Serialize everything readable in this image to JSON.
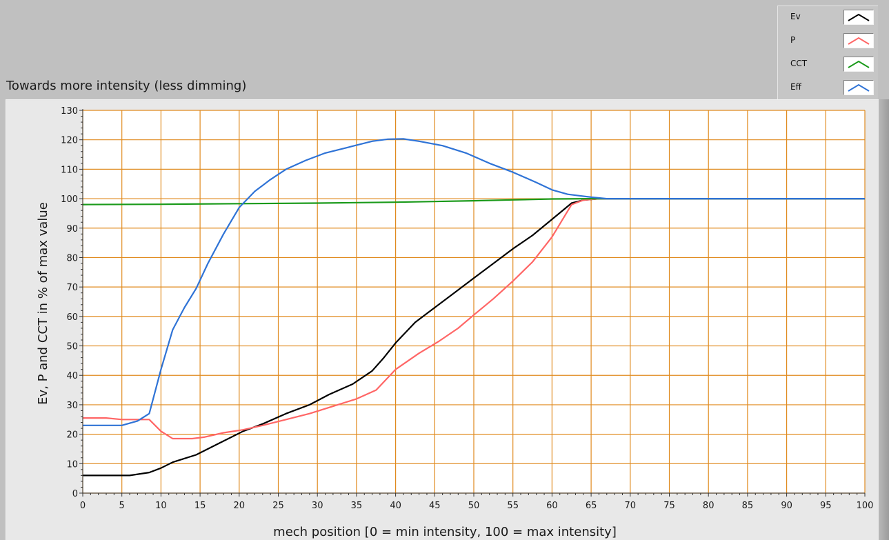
{
  "title": "Towards more intensity (less dimming)",
  "legend": [
    {
      "name": "Ev",
      "color": "#000000"
    },
    {
      "name": "P",
      "color": "#ff6666"
    },
    {
      "name": "CCT",
      "color": "#1a9a1a"
    },
    {
      "name": "Eff",
      "color": "#2f73d6"
    }
  ],
  "colors": {
    "grid": "#e08a1e",
    "plot_bg": "#ffffff"
  },
  "chart_data": {
    "type": "line",
    "xlabel": "mech position [0 = min intensity, 100 = max intensity]",
    "ylabel": "Ev, P and CCT in % of max value",
    "xlim": [
      0,
      100
    ],
    "ylim": [
      0,
      130
    ],
    "xticks": [
      0,
      5,
      10,
      15,
      20,
      25,
      30,
      35,
      40,
      45,
      50,
      55,
      60,
      65,
      70,
      75,
      80,
      85,
      90,
      95,
      100
    ],
    "yticks": [
      0,
      10,
      20,
      30,
      40,
      50,
      60,
      70,
      80,
      90,
      100,
      110,
      120,
      130
    ],
    "grid": true,
    "legend_position": "top-right",
    "series": [
      {
        "name": "Ev",
        "color": "#000000",
        "x": [
          0,
          6,
          8.5,
          10,
          11.5,
          14.5,
          17.5,
          20.5,
          23,
          26,
          29,
          31.5,
          34.5,
          37,
          38.5,
          40,
          42.5,
          45,
          47.5,
          50,
          52.5,
          55,
          57.5,
          60,
          62.5,
          64,
          66,
          70,
          75,
          80,
          85,
          90,
          95,
          100
        ],
        "y": [
          6,
          6,
          7,
          8.5,
          10.5,
          13,
          17,
          21,
          23.5,
          27,
          30,
          33.5,
          37,
          41.5,
          46,
          51,
          58,
          63,
          68,
          73,
          78,
          83,
          87.5,
          93,
          98.5,
          99.5,
          100,
          100,
          100,
          100,
          100,
          100,
          100,
          100
        ]
      },
      {
        "name": "P",
        "color": "#ff6666",
        "x": [
          0,
          3,
          5,
          8.5,
          10,
          11.5,
          14,
          15.5,
          18,
          20.5,
          23,
          26,
          29,
          32,
          35,
          37.5,
          40,
          43,
          45.5,
          48,
          50,
          52.5,
          55,
          57.5,
          60,
          62.5,
          64,
          66,
          70,
          75,
          80,
          85,
          90,
          95,
          100
        ],
        "y": [
          25.5,
          25.5,
          25,
          25,
          21,
          18.5,
          18.5,
          19,
          20.5,
          21.5,
          23,
          25,
          27,
          29.5,
          32,
          35,
          42,
          47.5,
          51.5,
          56,
          60.5,
          66,
          72,
          78.5,
          87,
          98,
          99.5,
          100,
          100,
          100,
          100,
          100,
          100,
          100,
          100
        ]
      },
      {
        "name": "CCT",
        "color": "#1a9a1a",
        "x": [
          0,
          10,
          20,
          30,
          40,
          50,
          55,
          60,
          65,
          70,
          75,
          80,
          85,
          90,
          95,
          100
        ],
        "y": [
          98,
          98.1,
          98.3,
          98.5,
          98.8,
          99.3,
          99.6,
          99.9,
          100,
          100,
          100,
          100,
          100,
          100,
          100,
          100
        ]
      },
      {
        "name": "Eff",
        "color": "#2f73d6",
        "x": [
          0,
          5,
          7,
          8.5,
          10,
          11.5,
          13,
          14.5,
          16,
          18,
          20,
          22,
          24,
          26,
          28.5,
          31,
          34,
          37,
          39,
          41,
          43,
          46,
          49,
          52,
          55,
          58,
          60,
          62,
          63.5,
          65,
          67,
          70,
          75,
          80,
          85,
          90,
          95,
          100
        ],
        "y": [
          23,
          23,
          24.5,
          27,
          42,
          55.5,
          63,
          69.5,
          78,
          88,
          97,
          102.5,
          106.5,
          110,
          113,
          115.5,
          117.5,
          119.5,
          120.2,
          120.3,
          119.5,
          118,
          115.5,
          112,
          109,
          105.5,
          103,
          101.5,
          101,
          100.5,
          100,
          100,
          100,
          100,
          100,
          100,
          100,
          100
        ]
      }
    ]
  }
}
